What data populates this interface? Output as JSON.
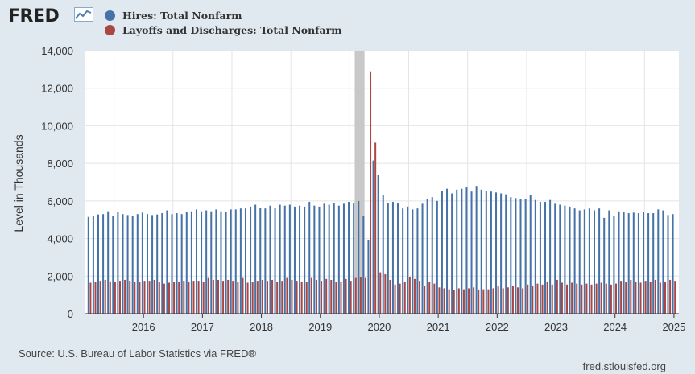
{
  "header": {
    "logo_text": "FRED",
    "logo_icon": "trend-line-icon",
    "legend": [
      {
        "label": "Hires: Total Nonfarm",
        "color": "#4572a7"
      },
      {
        "label": "Layoffs and Discharges: Total Nonfarm",
        "color": "#aa4643"
      }
    ]
  },
  "footer": {
    "source": "Source: U.S. Bureau of Labor Statistics via FRED®",
    "credit": "fred.stlouisfed.org"
  },
  "chart_data": {
    "type": "bar",
    "title": "",
    "xlabel": "",
    "ylabel": "Level in Thousands",
    "ylim": [
      0,
      14000
    ],
    "yticks": [
      0,
      2000,
      4000,
      6000,
      8000,
      10000,
      12000,
      14000
    ],
    "ytick_labels": [
      "0",
      "2,000",
      "4,000",
      "6,000",
      "8,000",
      "10,000",
      "12,000",
      "14,000"
    ],
    "xtick_labels": [
      "2016",
      "2017",
      "2018",
      "2019",
      "2020",
      "2021",
      "2022",
      "2023",
      "2024",
      "2025"
    ],
    "xlim": [
      "2015-07",
      "2025-08"
    ],
    "grid": true,
    "recession_shading": {
      "start": "2020-02",
      "end": "2020-04"
    },
    "colors": {
      "hires": "#4572a7",
      "layoffs": "#aa4643",
      "recession": "#c8c8c8",
      "grid": "#e4e4e4"
    },
    "series": [
      {
        "name": "Hires: Total Nonfarm",
        "start": "2015-08",
        "values": [
          5150,
          5200,
          5280,
          5300,
          5450,
          5200,
          5400,
          5300,
          5250,
          5200,
          5300,
          5380,
          5300,
          5250,
          5280,
          5350,
          5500,
          5300,
          5350,
          5300,
          5400,
          5450,
          5550,
          5450,
          5500,
          5450,
          5550,
          5450,
          5400,
          5550,
          5550,
          5600,
          5600,
          5700,
          5800,
          5650,
          5600,
          5750,
          5650,
          5800,
          5750,
          5800,
          5700,
          5750,
          5700,
          5950,
          5750,
          5700,
          5850,
          5800,
          5900,
          5750,
          5850,
          5950,
          5900,
          6000,
          5200,
          3900,
          8150,
          7400,
          6300,
          5900,
          5950,
          5900,
          5600,
          5700,
          5550,
          5600,
          5850,
          6100,
          6200,
          6000,
          6550,
          6650,
          6400,
          6600,
          6650,
          6750,
          6500,
          6800,
          6600,
          6550,
          6500,
          6450,
          6400,
          6350,
          6200,
          6150,
          6100,
          6100,
          6300,
          6050,
          5950,
          5950,
          6050,
          5850,
          5800,
          5750,
          5700,
          5600,
          5500,
          5550,
          5600,
          5500,
          5600,
          5100,
          5500,
          5200,
          5450,
          5400,
          5350,
          5380,
          5350,
          5400,
          5350,
          5350,
          5550,
          5500,
          5250,
          5300
        ]
      },
      {
        "name": "Layoffs and Discharges: Total Nonfarm",
        "start": "2015-08",
        "values": [
          1650,
          1700,
          1750,
          1800,
          1720,
          1700,
          1750,
          1800,
          1750,
          1700,
          1700,
          1750,
          1750,
          1800,
          1700,
          1600,
          1650,
          1700,
          1700,
          1750,
          1700,
          1750,
          1750,
          1700,
          1900,
          1800,
          1800,
          1750,
          1800,
          1750,
          1700,
          1900,
          1650,
          1700,
          1750,
          1800,
          1750,
          1800,
          1700,
          1750,
          1900,
          1800,
          1750,
          1700,
          1700,
          1900,
          1800,
          1750,
          1850,
          1800,
          1700,
          1700,
          1850,
          1750,
          1900,
          1950,
          1900,
          12900,
          9100,
          2200,
          2100,
          1800,
          1550,
          1600,
          1700,
          1950,
          1850,
          1750,
          1500,
          1700,
          1600,
          1400,
          1350,
          1300,
          1280,
          1350,
          1300,
          1350,
          1400,
          1280,
          1300,
          1300,
          1350,
          1450,
          1350,
          1400,
          1500,
          1400,
          1350,
          1550,
          1500,
          1600,
          1550,
          1700,
          1550,
          1800,
          1650,
          1550,
          1650,
          1600,
          1550,
          1600,
          1550,
          1600,
          1650,
          1600,
          1550,
          1600,
          1750,
          1700,
          1800,
          1700,
          1650,
          1750,
          1700,
          1800,
          1650,
          1700,
          1800,
          1750
        ]
      }
    ]
  }
}
